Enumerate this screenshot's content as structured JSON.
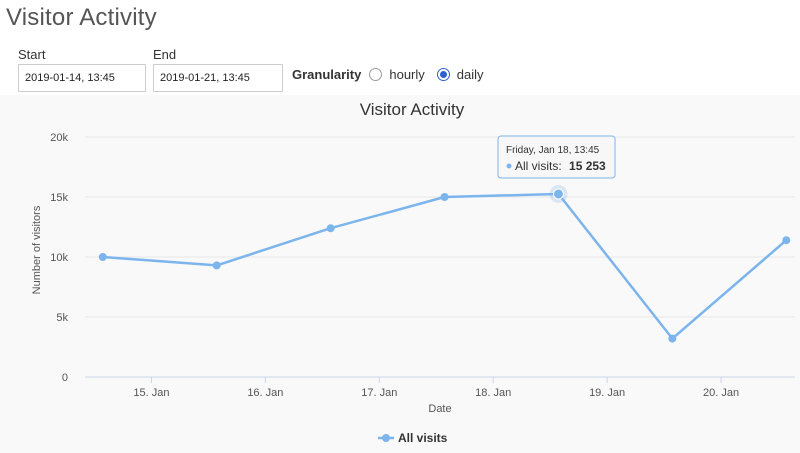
{
  "page": {
    "title": "Visitor Activity"
  },
  "filters": {
    "start_label": "Start",
    "start_value": "2019-01-14, 13:45",
    "end_label": "End",
    "end_value": "2019-01-21, 13:45",
    "granularity_label": "Granularity",
    "options": [
      {
        "label": "hourly",
        "selected": false
      },
      {
        "label": "daily",
        "selected": true
      }
    ]
  },
  "tooltip": {
    "date": "Friday, Jan 18, 13:45",
    "series_label": "All visits:",
    "value": "15 253"
  },
  "colors": {
    "series": "#7cb5ec",
    "grid": "#e6e6e6",
    "radio_selected": "#2e5fd0"
  },
  "chart_data": {
    "type": "line",
    "title": "Visitor Activity",
    "xlabel": "Date",
    "ylabel": "Number of visitors",
    "x": [
      "2019-01-14 13:45",
      "2019-01-15 13:45",
      "2019-01-16 13:45",
      "2019-01-17 13:45",
      "2019-01-18 13:45",
      "2019-01-19 13:45",
      "2019-01-20 13:45"
    ],
    "x_ticks": [
      "15. Jan",
      "16. Jan",
      "17. Jan",
      "18. Jan",
      "19. Jan",
      "20. Jan"
    ],
    "y_ticks": [
      "0",
      "5k",
      "10k",
      "15k",
      "20k"
    ],
    "ylim": [
      0,
      20000
    ],
    "series": [
      {
        "name": "All visits",
        "values": [
          10000,
          9300,
          12400,
          15000,
          15253,
          3200,
          11400
        ]
      }
    ],
    "grid": true,
    "legend": "bottom-center"
  }
}
